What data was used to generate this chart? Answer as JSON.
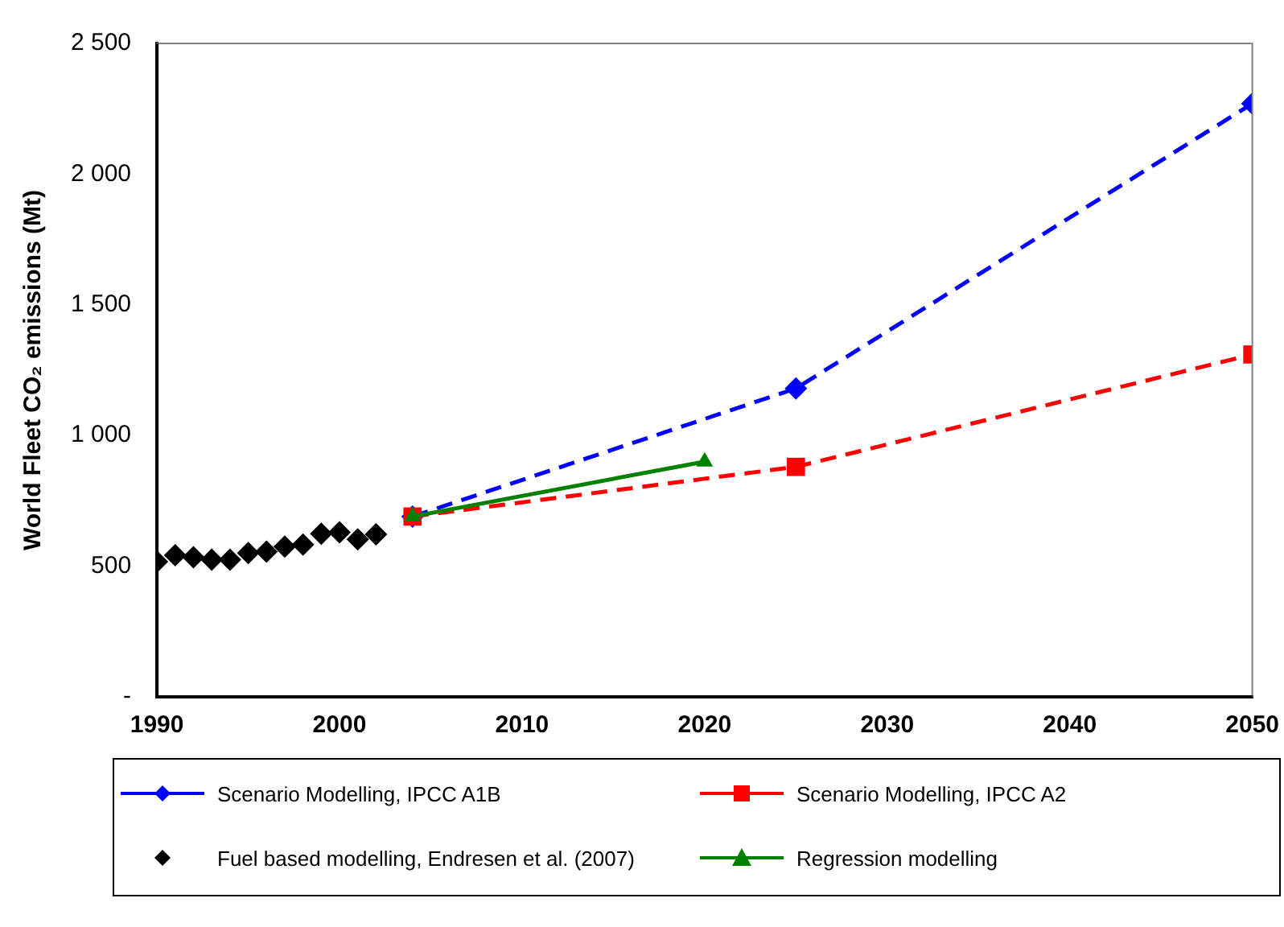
{
  "chart_data": {
    "type": "line",
    "ylabel": "World Fleet CO₂ emissions (Mt)",
    "xlim": [
      1990,
      2050
    ],
    "xticks": [
      1990,
      2000,
      2010,
      2020,
      2030,
      2040,
      2050
    ],
    "ylim": [
      0,
      2500
    ],
    "yticks": [
      {
        "value": 0,
        "label": "-"
      },
      {
        "value": 500,
        "label": "500"
      },
      {
        "value": 1000,
        "label": "1 000"
      },
      {
        "value": 1500,
        "label": "1 500"
      },
      {
        "value": 2000,
        "label": "2 000"
      },
      {
        "value": 2500,
        "label": "2 500"
      }
    ],
    "grid": false,
    "legend": "bottom",
    "series": [
      {
        "name": "Scenario Modelling, IPCC A1B",
        "color": "#0000ff",
        "marker": "diamond",
        "line_style": "dashed",
        "x": [
          2004,
          2025,
          2050
        ],
        "values": [
          690,
          1180,
          2270
        ]
      },
      {
        "name": "Scenario Modelling, IPCC A2",
        "color": "#ff0000",
        "marker": "square",
        "line_style": "dashed",
        "x": [
          2004,
          2025,
          2050
        ],
        "values": [
          690,
          880,
          1310
        ]
      },
      {
        "name": "Fuel based modelling, Endresen et al. (2007)",
        "type": "scatter",
        "color": "#000000",
        "marker": "diamond",
        "x": [
          1990,
          1991,
          1992,
          1993,
          1994,
          1995,
          1996,
          1997,
          1998,
          1999,
          2000,
          2001,
          2002
        ],
        "values": [
          517,
          542,
          534,
          525,
          525,
          550,
          556,
          575,
          583,
          624,
          630,
          603,
          622
        ]
      },
      {
        "name": "Regression modelling",
        "color": "#008000",
        "marker": "triangle",
        "line_style": "solid",
        "x": [
          2004,
          2020
        ],
        "values": [
          690,
          900
        ]
      }
    ]
  }
}
